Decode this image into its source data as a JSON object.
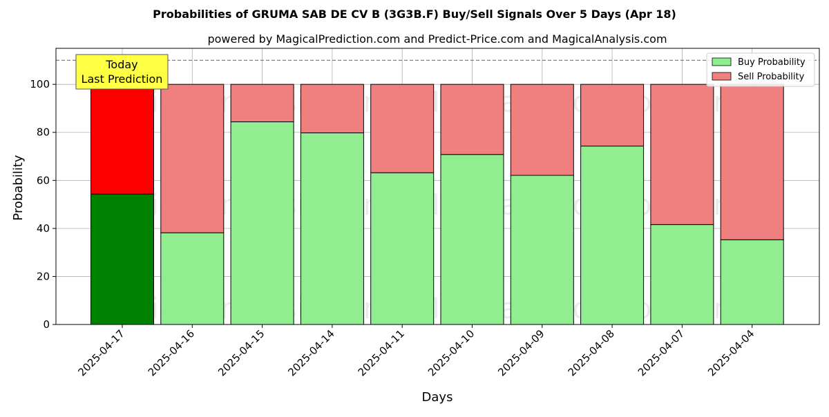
{
  "chart_data": {
    "type": "bar",
    "title": "Probabilities of GRUMA SAB DE CV B (3G3B.F) Buy/Sell Signals Over 5 Days (Apr 18)",
    "subtitle": "powered by MagicalPrediction.com and Predict-Price.com and MagicalAnalysis.com",
    "xlabel": "Days",
    "ylabel": "Probability",
    "ylim": [
      0,
      115
    ],
    "yticks": [
      0,
      20,
      40,
      60,
      80,
      100
    ],
    "grid": true,
    "legend_position": "top-right",
    "categories": [
      "2025-04-17",
      "2025-04-16",
      "2025-04-15",
      "2025-04-14",
      "2025-04-11",
      "2025-04-10",
      "2025-04-09",
      "2025-04-08",
      "2025-04-07",
      "2025-04-04"
    ],
    "series": [
      {
        "name": "Buy Probability",
        "values": [
          54.3,
          38.2,
          84.4,
          79.8,
          63.2,
          70.8,
          62.1,
          74.3,
          41.6,
          35.3
        ]
      },
      {
        "name": "Sell Probability",
        "values": [
          45.7,
          61.8,
          15.6,
          20.2,
          36.8,
          29.2,
          37.9,
          25.7,
          58.4,
          64.7
        ]
      }
    ],
    "reference_line": 110,
    "annotation": {
      "line1": "Today",
      "line2": "Last Prediction"
    },
    "watermarks": [
      "MagicalAnalysis.com",
      "MagicalPrediction.com"
    ],
    "colors": {
      "buy": "#90ee90",
      "sell": "#f08080",
      "buy_today": "#008000",
      "sell_today": "#ff0000",
      "annotation_bg": "#ffff44"
    }
  }
}
